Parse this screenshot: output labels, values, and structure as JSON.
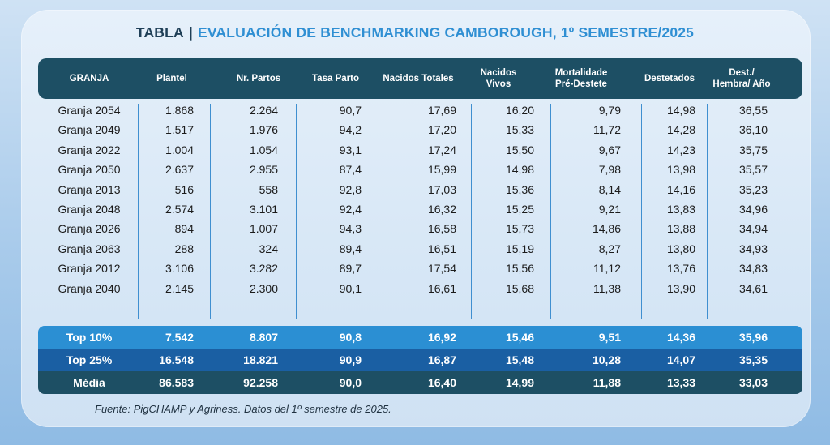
{
  "title": {
    "prefix": "TABLA",
    "separator": "|",
    "main": "EVALUACIÓN DE BENCHMARKING CAMBOROUGH, 1º SEMESTRE/2025"
  },
  "chart_data": {
    "type": "table",
    "columns": [
      "GRANJA",
      "Plantel",
      "Nr. Partos",
      "Tasa Parto",
      "Nacidos Totales",
      "Nacidos\nVivos",
      "Mortalidade\nPré-Destete",
      "Destetados",
      "Dest./\nHembra/ Año"
    ],
    "rows": [
      [
        "Granja 2054",
        "1.868",
        "2.264",
        "90,7",
        "17,69",
        "16,20",
        "9,79",
        "14,98",
        "36,55"
      ],
      [
        "Granja 2049",
        "1.517",
        "1.976",
        "94,2",
        "17,20",
        "15,33",
        "11,72",
        "14,28",
        "36,10"
      ],
      [
        "Granja 2022",
        "1.004",
        "1.054",
        "93,1",
        "17,24",
        "15,50",
        "9,67",
        "14,23",
        "35,75"
      ],
      [
        "Granja 2050",
        "2.637",
        "2.955",
        "87,4",
        "15,99",
        "14,98",
        "7,98",
        "13,98",
        "35,57"
      ],
      [
        "Granja 2013",
        "516",
        "558",
        "92,8",
        "17,03",
        "15,36",
        "8,14",
        "14,16",
        "35,23"
      ],
      [
        "Granja 2048",
        "2.574",
        "3.101",
        "92,4",
        "16,32",
        "15,25",
        "9,21",
        "13,83",
        "34,96"
      ],
      [
        "Granja 2026",
        "894",
        "1.007",
        "94,3",
        "16,58",
        "15,73",
        "14,86",
        "13,88",
        "34,94"
      ],
      [
        "Granja 2063",
        "288",
        "324",
        "89,4",
        "16,51",
        "15,19",
        "8,27",
        "13,80",
        "34,93"
      ],
      [
        "Granja 2012",
        "3.106",
        "3.282",
        "89,7",
        "17,54",
        "15,56",
        "11,12",
        "13,76",
        "34,83"
      ],
      [
        "Granja 2040",
        "2.145",
        "2.300",
        "90,1",
        "16,61",
        "15,68",
        "11,38",
        "13,90",
        "34,61"
      ]
    ],
    "summary_rows": [
      [
        "Top 10%",
        "7.542",
        "8.807",
        "90,8",
        "16,92",
        "15,46",
        "9,51",
        "14,36",
        "35,96"
      ],
      [
        "Top 25%",
        "16.548",
        "18.821",
        "90,9",
        "16,87",
        "15,48",
        "10,28",
        "14,07",
        "35,35"
      ],
      [
        "Média",
        "86.583",
        "92.258",
        "90,0",
        "16,40",
        "14,99",
        "11,88",
        "13,33",
        "33,03"
      ]
    ]
  },
  "source": "Fuente: PigCHAMP y Agriness. Datos del 1º semestre de 2025.",
  "colors": {
    "header": "#1d4f64",
    "title_accent": "#2f8fd3",
    "top10": "#2b8fd3",
    "top25": "#1a5fa3",
    "media": "#1d4f64"
  }
}
